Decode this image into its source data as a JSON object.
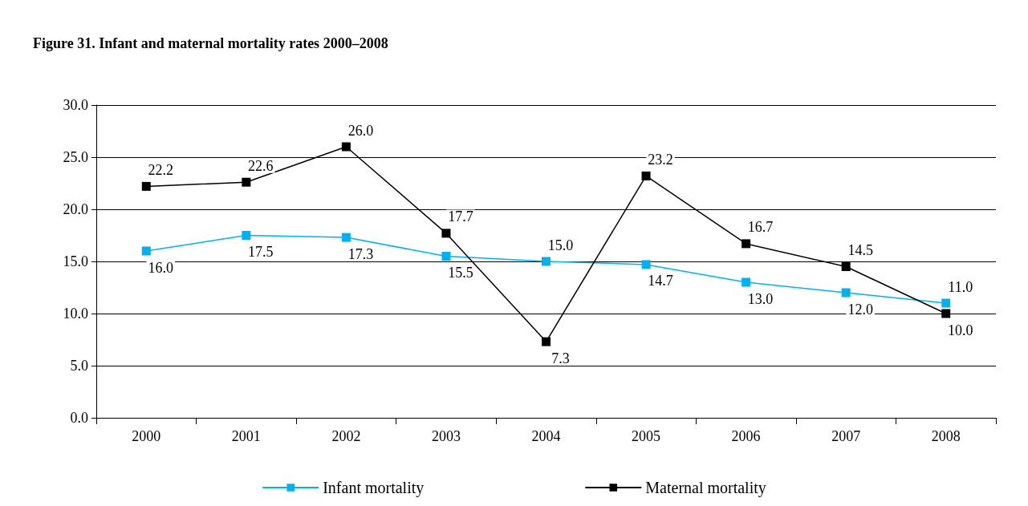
{
  "chart_data": {
    "type": "line",
    "title": "Figure 31. Infant and maternal mortality rates 2000–2008",
    "categories": [
      "2000",
      "2001",
      "2002",
      "2003",
      "2004",
      "2005",
      "2006",
      "2007",
      "2008"
    ],
    "series": [
      {
        "name": "Infant mortality",
        "color": "#00b0f0",
        "values": [
          16.0,
          17.5,
          17.3,
          15.5,
          15.0,
          14.7,
          13.0,
          12.0,
          11.0
        ],
        "value_labels": [
          "16.0",
          "17.5",
          "17.3",
          "15.5",
          "15.0",
          "14.7",
          "13.0",
          "12.0",
          "11.0"
        ]
      },
      {
        "name": "Maternal mortality",
        "color": "#000000",
        "values": [
          22.2,
          22.6,
          26.0,
          17.7,
          7.3,
          23.2,
          16.7,
          14.5,
          10.0
        ],
        "value_labels": [
          "22.2",
          "22.6",
          "26.0",
          "17.7",
          "7.3",
          "23.2",
          "16.7",
          "14.5",
          "10.0"
        ]
      }
    ],
    "ylim": [
      0,
      30
    ],
    "yticks": [
      {
        "value": 0,
        "label": "0.0"
      },
      {
        "value": 5,
        "label": "5.0"
      },
      {
        "value": 10,
        "label": "10.0"
      },
      {
        "value": 15,
        "label": "15.0"
      },
      {
        "value": 20,
        "label": "20.0"
      },
      {
        "value": 25,
        "label": "25.0"
      },
      {
        "value": 30,
        "label": "30.0"
      }
    ],
    "grid": "y",
    "legend": "bottom",
    "marker": "square",
    "line_style": "solid"
  }
}
